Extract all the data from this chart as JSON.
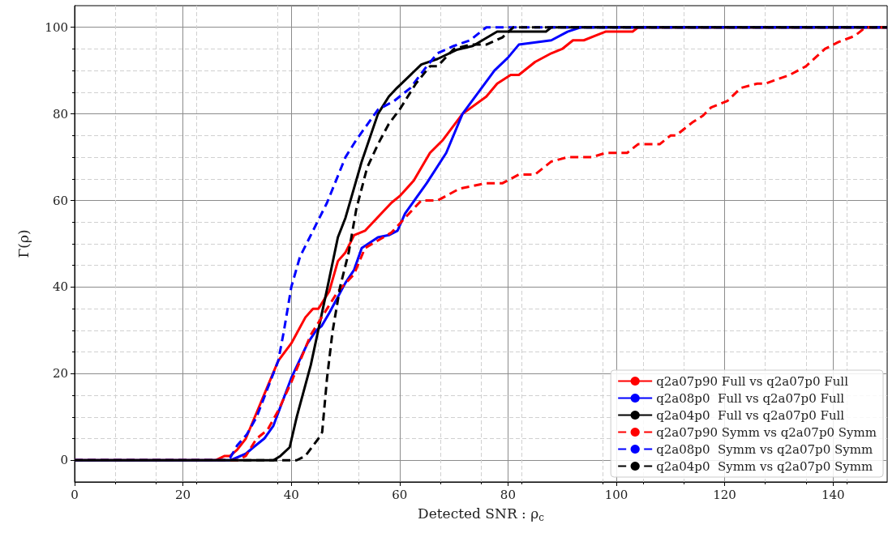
{
  "chart_data": {
    "type": "line",
    "xlabel": "Detected SNR : ρ$_{c}$",
    "ylabel": "Γ(ρ)",
    "xlim": [
      0,
      150
    ],
    "xticks": [
      0,
      20,
      40,
      60,
      80,
      100,
      120,
      140
    ],
    "ylim": [
      -5,
      105
    ],
    "yticks": [
      0,
      20,
      40,
      60,
      80,
      100
    ],
    "grid": true,
    "legend": "bottom right",
    "marker": "none",
    "series": [
      {
        "name": "q2a07p90 Full vs q2a07p0 Full",
        "color": "#ff0000",
        "line_style": "solid",
        "x": [
          0,
          26,
          27.7,
          28.7,
          30,
          31.6,
          33.6,
          35.6,
          37.6,
          40,
          42.6,
          44,
          45,
          47,
          48.6,
          50,
          51.6,
          53.6,
          58.5,
          60,
          62.6,
          65.6,
          68,
          71.6,
          76,
          78,
          80.5,
          82,
          85,
          88,
          90,
          92,
          94,
          96,
          98,
          103,
          104,
          150
        ],
        "values": [
          0,
          0,
          1,
          1,
          2.4,
          5,
          11,
          17,
          23,
          27,
          33,
          35,
          35,
          39,
          46,
          48,
          52,
          53,
          59.5,
          61,
          64.6,
          71,
          74,
          80,
          84,
          87,
          89,
          89,
          92,
          94,
          95,
          97,
          97,
          98,
          99,
          99,
          100,
          100
        ]
      },
      {
        "name": "q2a08p0  Full vs q2a07p0 Full",
        "color": "#0000ff",
        "line_style": "solid",
        "x": [
          0,
          28.7,
          31.6,
          33,
          35,
          36.7,
          40,
          43,
          44.6,
          45.6,
          47,
          50,
          51.6,
          53,
          56,
          58,
          59.6,
          61,
          65,
          68.6,
          71.6,
          77.5,
          80,
          82,
          88,
          91,
          93.4,
          150
        ],
        "values": [
          0,
          0,
          1.5,
          3,
          5,
          8,
          19,
          27,
          30,
          31,
          34,
          41,
          44,
          49,
          51.5,
          52,
          53,
          57,
          64,
          71,
          80,
          90,
          93,
          96,
          97,
          99,
          100,
          100
        ]
      },
      {
        "name": "q2a04p0  Full vs q2a07p0 Full",
        "color": "#000000",
        "line_style": "solid",
        "x": [
          0,
          36.7,
          38,
          39.7,
          41,
          43.6,
          46.6,
          48.6,
          50,
          53,
          56,
          58,
          59.5,
          64,
          67,
          70.5,
          73.5,
          78,
          87,
          88,
          150
        ],
        "values": [
          0,
          0,
          1,
          3,
          10,
          22,
          39.5,
          51.5,
          56,
          69,
          80,
          84,
          86,
          91.4,
          92.7,
          94.8,
          95.7,
          99,
          99,
          100,
          100
        ]
      },
      {
        "name": "q2a07p90 Symm vs q2a07p0 Symm",
        "color": "#ff0000",
        "line_style": "dashed",
        "x": [
          0,
          30,
          31.6,
          33.6,
          35.6,
          37.6,
          40,
          43.6,
          45.6,
          48.6,
          51.6,
          53.6,
          58.5,
          61,
          64,
          67,
          71,
          76,
          79,
          82,
          85,
          88,
          91,
          95.5,
          98,
          102,
          104,
          108,
          110,
          111,
          114,
          116,
          117.5,
          120.5,
          123,
          126,
          127.5,
          132,
          135,
          138.5,
          141,
          144,
          145,
          146,
          150
        ],
        "values": [
          0,
          0,
          1,
          5,
          7,
          11.5,
          18,
          29,
          33,
          39,
          43,
          49,
          52.6,
          56,
          60,
          60,
          62.7,
          64,
          64,
          66,
          66,
          69,
          70,
          70,
          71,
          71,
          73,
          73,
          75,
          75,
          78,
          79.6,
          81.5,
          83,
          86,
          87,
          87,
          89,
          91,
          95,
          96.6,
          98,
          99,
          100,
          100
        ]
      },
      {
        "name": "q2a08p0  Symm vs q2a07p0 Symm",
        "color": "#0000ff",
        "line_style": "dashed",
        "x": [
          0,
          28,
          28.7,
          30,
          31.8,
          33.6,
          35.6,
          37.6,
          38.6,
          40,
          41.6,
          43.6,
          44.6,
          46.6,
          50,
          52,
          56,
          59,
          62,
          65,
          67,
          70,
          73,
          76,
          150
        ],
        "values": [
          0,
          0,
          0.5,
          3.4,
          6,
          10,
          16.5,
          23,
          29.6,
          40,
          47,
          52,
          54.5,
          59.5,
          70,
          74,
          81,
          83,
          86,
          91,
          94,
          95.7,
          97,
          100,
          100
        ]
      },
      {
        "name": "q2a04p0  Symm vs q2a07p0 Symm",
        "color": "#000000",
        "line_style": "dashed",
        "x": [
          0,
          41,
          42.6,
          45,
          45.7,
          46.6,
          47.6,
          49,
          50.6,
          52,
          54,
          56,
          58,
          60,
          63,
          65.6,
          67,
          70,
          73,
          76,
          79,
          81,
          150
        ],
        "values": [
          0,
          0,
          1,
          5,
          6.5,
          19,
          29.6,
          40,
          48,
          58,
          67.6,
          73,
          77.7,
          81,
          87,
          91,
          91,
          95,
          96,
          96,
          97.7,
          100,
          100
        ]
      }
    ]
  }
}
